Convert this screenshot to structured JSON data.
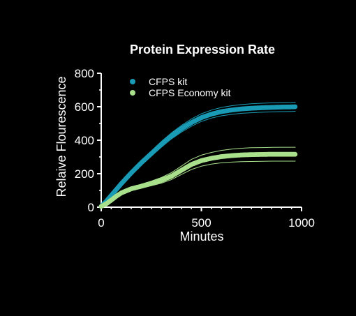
{
  "chart_data": {
    "type": "scatter",
    "title": "Protein Expression Rate",
    "xlabel": "Minutes",
    "ylabel": "Relaive Flourescence",
    "xlim": [
      0,
      1000
    ],
    "ylim": [
      0,
      800
    ],
    "xticks": [
      0,
      500,
      1000
    ],
    "yticks": [
      0,
      200,
      400,
      600,
      800
    ],
    "grid": false,
    "legend_position": "top-left",
    "background": "#000000",
    "series": [
      {
        "name": "CFPS kit",
        "color": "#1a9bb5",
        "x": [
          0,
          25,
          50,
          75,
          100,
          150,
          200,
          250,
          300,
          350,
          400,
          450,
          500,
          550,
          600,
          650,
          700,
          750,
          800,
          850,
          900,
          950,
          970
        ],
        "y": [
          5,
          35,
          70,
          105,
          140,
          205,
          265,
          320,
          375,
          425,
          468,
          505,
          535,
          556,
          571,
          580,
          587,
          591,
          594,
          596,
          598,
          599,
          600
        ],
        "upper": [
          5,
          37,
          73,
          110,
          147,
          215,
          278,
          335,
          392,
          443,
          488,
          527,
          558,
          580,
          596,
          606,
          613,
          618,
          621,
          623,
          625,
          626,
          627
        ],
        "lower": [
          5,
          33,
          67,
          100,
          133,
          195,
          252,
          305,
          358,
          407,
          448,
          483,
          512,
          532,
          546,
          554,
          561,
          564,
          567,
          569,
          571,
          572,
          573
        ]
      },
      {
        "name": "CFPS Economy kit",
        "color": "#a8e08c",
        "x": [
          0,
          25,
          50,
          75,
          100,
          150,
          200,
          250,
          300,
          350,
          400,
          450,
          500,
          550,
          600,
          650,
          700,
          750,
          800,
          850,
          900,
          950,
          970
        ],
        "y": [
          5,
          20,
          42,
          65,
          85,
          110,
          125,
          142,
          160,
          185,
          220,
          255,
          278,
          292,
          302,
          308,
          312,
          314,
          315,
          316,
          316,
          316,
          316
        ],
        "upper": [
          5,
          23,
          47,
          72,
          94,
          120,
          137,
          156,
          177,
          206,
          245,
          285,
          311,
          327,
          339,
          347,
          352,
          355,
          356,
          357,
          358,
          358,
          358
        ],
        "lower": [
          5,
          17,
          37,
          58,
          76,
          100,
          113,
          128,
          143,
          164,
          195,
          225,
          245,
          257,
          265,
          269,
          272,
          273,
          274,
          275,
          275,
          275,
          275
        ]
      }
    ]
  }
}
